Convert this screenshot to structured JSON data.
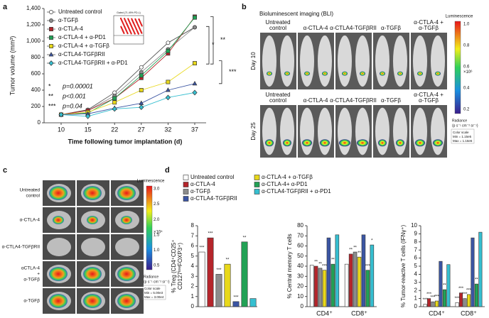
{
  "panel_labels": [
    "a",
    "b",
    "c",
    "d"
  ],
  "chart_data": [
    {
      "type": "line",
      "y_label": "Tumor volume (mm³)",
      "x_label": "Time following tumor implantation (d)",
      "categories": [
        "10",
        "15",
        "22",
        "27",
        "32",
        "37"
      ],
      "ylim": [
        0,
        1400
      ],
      "yticks": [
        0,
        200,
        400,
        600,
        800,
        {
          "value": 1000,
          "label": "1,000"
        },
        {
          "value": 1200,
          "label": "1,200"
        },
        {
          "value": 1400,
          "label": "1,400"
        }
      ],
      "legend": "upper-left",
      "series": [
        {
          "name": "Untreated control",
          "color": "#ffffff",
          "marker": "circle",
          "values": [
            100,
            160,
            370,
            680,
            980,
            1170
          ]
        },
        {
          "name": "α-TGFβ",
          "color": "#8c8c8c",
          "marker": "circle",
          "values": [
            100,
            150,
            330,
            620,
            900,
            1170
          ]
        },
        {
          "name": "α-CTLA-4",
          "color": "#b5252b",
          "marker": "square",
          "values": [
            100,
            150,
            300,
            550,
            850,
            1300
          ]
        },
        {
          "name": "α-CTLA-4 + α-PD1",
          "color": "#22a155",
          "marker": "square",
          "values": [
            100,
            120,
            300,
            580,
            880,
            1290
          ]
        },
        {
          "name": "α-CTLA-4 + α-TGFβ",
          "color": "#e8d81a",
          "marker": "square",
          "values": [
            100,
            130,
            250,
            400,
            500,
            730
          ]
        },
        {
          "name": "α-CTLA4-TGFβRII",
          "color": "#3b55a3",
          "marker": "triangle",
          "values": [
            100,
            110,
            180,
            240,
            400,
            480
          ]
        },
        {
          "name": "α-CTLA4-TGFβRII + α-PD1",
          "color": "#36bfd0",
          "marker": "diamond",
          "values": [
            100,
            80,
            170,
            190,
            310,
            370
          ]
        }
      ],
      "inset_text": "Gated (71.49% PD-L)",
      "p_values": [
        {
          "stars": "*",
          "text": "p=0.00001"
        },
        {
          "stars": "**",
          "text": "p<0.001"
        },
        {
          "stars": "***",
          "text": "p=0.04"
        }
      ],
      "brackets": [
        "**",
        "*",
        "***"
      ]
    },
    {
      "type": "bar",
      "y_label": [
        "% Treg (CD4⁺CD25⁺",
        "CD127ˡᵒʷFOXP3⁺)"
      ],
      "ylim": [
        0,
        8
      ],
      "yticks": [
        0,
        1,
        2,
        3,
        4,
        5,
        6,
        7,
        8
      ],
      "values": [
        5.4,
        6.8,
        3.2,
        4.2,
        0.5,
        6.4,
        0.8
      ],
      "stars": [
        "***",
        "***",
        "***",
        "**",
        "***",
        "**",
        null
      ]
    },
    {
      "type": "grouped_bar",
      "y_label": [
        "% Central memory T cells"
      ],
      "ylim": [
        0,
        80
      ],
      "yticks": [
        0,
        10,
        20,
        30,
        40,
        50,
        60,
        70,
        80
      ],
      "categories": [
        "CD4⁺",
        "CD8⁺"
      ],
      "series": [
        {
          "values": [
            41,
            42
          ],
          "stars": [
            null,
            null
          ]
        },
        {
          "values": [
            40,
            52
          ],
          "stars": [
            "**",
            "**"
          ]
        },
        {
          "values": [
            38,
            54
          ],
          "stars": [
            "**",
            "**"
          ]
        },
        {
          "values": [
            36,
            49
          ],
          "stars": [
            "***",
            "**"
          ]
        },
        {
          "values": [
            68,
            71
          ],
          "stars": [
            null,
            null
          ]
        },
        {
          "values": [
            42,
            36
          ],
          "stars": [
            "**",
            "***"
          ]
        },
        {
          "values": [
            71,
            61
          ],
          "stars": [
            null,
            "*"
          ]
        }
      ]
    },
    {
      "type": "grouped_bar",
      "y_label": [
        "% Tumor-reactive T cells (IFNγ⁺)"
      ],
      "ylim": [
        0,
        10
      ],
      "yticks": [
        0,
        1,
        2,
        3,
        4,
        5,
        6,
        7,
        8,
        9,
        10
      ],
      "categories": [
        "CD4⁺",
        "CD8⁺"
      ],
      "series": [
        {
          "values": [
            0.3,
            0.5
          ],
          "stars": [
            "***",
            "***"
          ]
        },
        {
          "values": [
            1.0,
            1.7
          ],
          "stars": [
            "***",
            "***"
          ]
        },
        {
          "values": [
            0.6,
            1.0
          ],
          "stars": [
            "***",
            "***"
          ]
        },
        {
          "values": [
            0.7,
            1.5
          ],
          "stars": [
            "***",
            "***"
          ]
        },
        {
          "values": [
            5.6,
            8.5
          ],
          "stars": [
            null,
            null
          ]
        },
        {
          "values": [
            2.1,
            2.8
          ],
          "stars": [
            "**",
            "**"
          ]
        },
        {
          "values": [
            5.2,
            9.2
          ],
          "stars": [
            null,
            null
          ]
        }
      ]
    }
  ],
  "panel_d_legend": [
    {
      "name": "Untreated control",
      "color": "#ffffff"
    },
    {
      "name": "α-CTLA-4",
      "color": "#b5252b"
    },
    {
      "name": "α-TGFβ",
      "color": "#8c8c8c"
    },
    {
      "name": "α-CTLA-4 + α-TGFβ",
      "color": "#e8d81a"
    },
    {
      "name": "α-CTLA4-TGFβRII",
      "color": "#3b55a3"
    },
    {
      "name": "α-CTLA-4+ α-PD1",
      "color": "#22a155"
    },
    {
      "name": "α-CTLA4-TGFβRII + α-PD1",
      "color": "#36bfd0"
    }
  ],
  "panel_b": {
    "title": "Bioluminescent imaging (BLI)",
    "columns": [
      [
        "Untreated",
        "control"
      ],
      [
        "α-CTLA-4"
      ],
      [
        "α-CTLA4-TGFβRII"
      ],
      [
        "α-TGFβ"
      ],
      [
        "α-CTLA-4 +",
        "α-TGFβ"
      ]
    ],
    "rows": [
      "Day 10",
      "Day 25"
    ],
    "colorbar_title": "Luminescence",
    "colorbar_ticks": [
      "1.0",
      "0.8",
      "0.6",
      "0.4",
      "0.2"
    ],
    "colorbar_unit": "×10⁶",
    "radiance": [
      "Radiance",
      "(p s⁻¹ cm⁻² sr⁻¹)"
    ],
    "color_scale": [
      "Color scale",
      "Min = 1.15e5",
      "Max = 1.16e6"
    ]
  },
  "panel_c": {
    "rows": [
      [
        "Untreated",
        "control"
      ],
      [
        "α-CTLA-4"
      ],
      [
        "α-CTLA4-TGFβRII"
      ],
      [
        "αCTLA-4",
        "+",
        "α-TGFβ"
      ],
      [
        "α-TGFβ"
      ]
    ],
    "colorbar_title": "Luminescence",
    "colorbar_ticks": [
      "3.0",
      "2.5",
      "2.0",
      "1.5",
      "1.0",
      "0.5"
    ],
    "colorbar_unit": "×10⁴",
    "radiance": [
      "Radiance",
      "(p s⁻¹ cm⁻² sr⁻¹)"
    ],
    "color_scale": [
      "Color scale",
      "Min = 5.00e3",
      "Max = 3.00e4"
    ]
  }
}
